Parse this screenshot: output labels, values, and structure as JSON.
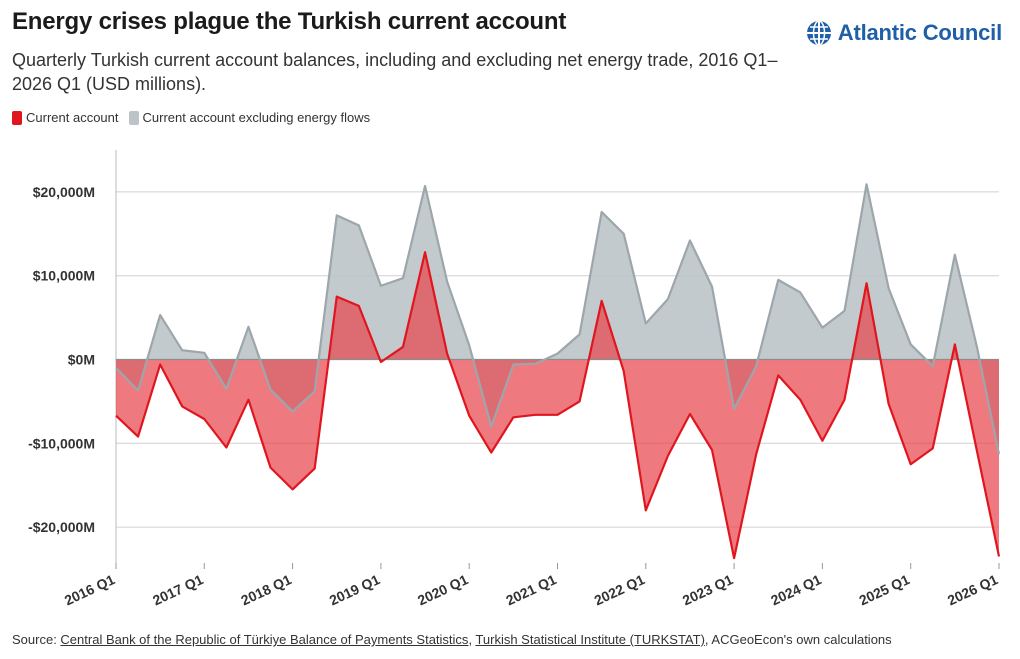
{
  "header": {
    "title": "Energy crises plague the Turkish current account",
    "subtitle": "Quarterly Turkish current account balances, including and excluding net energy trade, 2016 Q1–2026 Q1 (USD millions).",
    "brand": "Atlantic Council"
  },
  "footer": {
    "prefix": "Source: ",
    "link1": "Central Bank of the Republic of Türkiye Balance of Payments Statistics",
    "sep": ", ",
    "link2": "Turkish Statistical Institute (TURKSTAT)",
    "suffix": ", ACGeoEcon's own calculations"
  },
  "colors": {
    "current_account_line": "#e0161f",
    "current_account_fill": "#e8474f",
    "excl_energy_line": "#9da6ab",
    "excl_energy_fill": "#bcc4c8",
    "grid": "#d0d0d0",
    "brand_blue": "#1f5fa8"
  },
  "chart_data": {
    "type": "area",
    "x_tick_labels": [
      "2016 Q1",
      "2017 Q1",
      "2018 Q1",
      "2019 Q1",
      "2020 Q1",
      "2021 Q1",
      "2022 Q1",
      "2023 Q1",
      "2024 Q1",
      "2025 Q1",
      "2026 Q1"
    ],
    "y_ticks": [
      20000,
      10000,
      0,
      -10000,
      -20000
    ],
    "y_tick_labels": [
      "$20,000M",
      "$10,000M",
      "$0M",
      "-$10,000M",
      "-$20,000M"
    ],
    "ylim": [
      -25000,
      25000
    ],
    "grid": true,
    "legend_position": "top-left",
    "x": [
      "2016 Q1",
      "2016 Q2",
      "2016 Q3",
      "2016 Q4",
      "2017 Q1",
      "2017 Q2",
      "2017 Q3",
      "2017 Q4",
      "2018 Q1",
      "2018 Q2",
      "2018 Q3",
      "2018 Q4",
      "2019 Q1",
      "2019 Q2",
      "2019 Q3",
      "2019 Q4",
      "2020 Q1",
      "2020 Q2",
      "2020 Q3",
      "2020 Q4",
      "2021 Q1",
      "2021 Q2",
      "2021 Q3",
      "2021 Q4",
      "2022 Q1",
      "2022 Q2",
      "2022 Q3",
      "2022 Q4",
      "2023 Q1",
      "2023 Q2",
      "2023 Q3",
      "2023 Q4",
      "2024 Q1",
      "2024 Q2",
      "2024 Q3",
      "2024 Q4",
      "2025 Q1",
      "2025 Q2",
      "2025 Q3",
      "2025 Q4",
      "2026 Q1"
    ],
    "series": [
      {
        "name": "Current account excluding energy flows",
        "values": [
          -1000,
          -3700,
          5300,
          1100,
          800,
          -3500,
          3900,
          -3600,
          -6200,
          -3800,
          17200,
          16000,
          8800,
          9700,
          20700,
          9300,
          1700,
          -8000,
          -600,
          -500,
          700,
          3000,
          17600,
          15000,
          4300,
          7200,
          14200,
          8700,
          -5900,
          -800,
          9500,
          8000,
          3800,
          5800,
          20900,
          8500,
          1800,
          -800,
          12500,
          1500,
          -11300
        ]
      },
      {
        "name": "Current account",
        "values": [
          -6700,
          -9200,
          -600,
          -5600,
          -7100,
          -10500,
          -4800,
          -12900,
          -15500,
          -13000,
          7500,
          6400,
          -300,
          1500,
          12800,
          700,
          -6700,
          -11100,
          -6900,
          -6600,
          -6600,
          -5000,
          7000,
          -1400,
          -18000,
          -11500,
          -6500,
          -10800,
          -23700,
          -11300,
          -1900,
          -4800,
          -9700,
          -4800,
          9100,
          -5300,
          -12500,
          -10600,
          1800,
          -10900,
          -23500
        ]
      }
    ]
  }
}
